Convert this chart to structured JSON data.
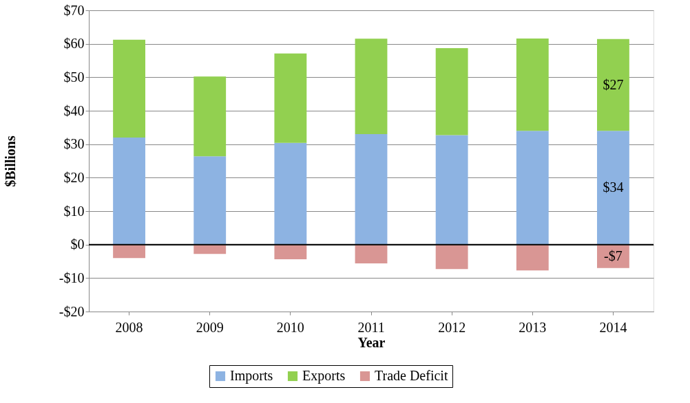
{
  "chart_data": {
    "type": "bar",
    "stacked": true,
    "xlabel": "Year",
    "ylabel": "$Billions",
    "categories": [
      "2008",
      "2009",
      "2010",
      "2011",
      "2012",
      "2013",
      "2014"
    ],
    "series": [
      {
        "name": "Imports",
        "color": "#8db3e2",
        "values": [
          32,
          26.4,
          30.4,
          33,
          32.7,
          34,
          34
        ],
        "value_labels": [
          null,
          null,
          null,
          null,
          null,
          null,
          "$34"
        ]
      },
      {
        "name": "Exports",
        "color": "#92d050",
        "values": [
          29.2,
          23.8,
          26.7,
          28.5,
          26,
          27.6,
          27.4
        ],
        "value_labels": [
          null,
          null,
          null,
          null,
          null,
          null,
          "$27"
        ]
      },
      {
        "name": "Trade Deficit",
        "color": "#d99694",
        "values": [
          -4,
          -2.8,
          -4.4,
          -5.6,
          -7.3,
          -7.7,
          -7
        ],
        "value_labels": [
          null,
          null,
          null,
          null,
          null,
          null,
          "-$7"
        ]
      }
    ],
    "ylim": [
      -20,
      70
    ],
    "yticks": [
      {
        "value": -20,
        "label": "-$20"
      },
      {
        "value": -10,
        "label": "-$10"
      },
      {
        "value": 0,
        "label": "$0"
      },
      {
        "value": 10,
        "label": "$10"
      },
      {
        "value": 20,
        "label": "$20"
      },
      {
        "value": 30,
        "label": "$30"
      },
      {
        "value": 40,
        "label": "$40"
      },
      {
        "value": 50,
        "label": "$50"
      },
      {
        "value": 60,
        "label": "$60"
      },
      {
        "value": 70,
        "label": "$70"
      }
    ],
    "ref_lines": [
      {
        "axis": "y",
        "value": 0,
        "color": "#000000"
      }
    ],
    "grid": "y",
    "legend": "bottom"
  }
}
